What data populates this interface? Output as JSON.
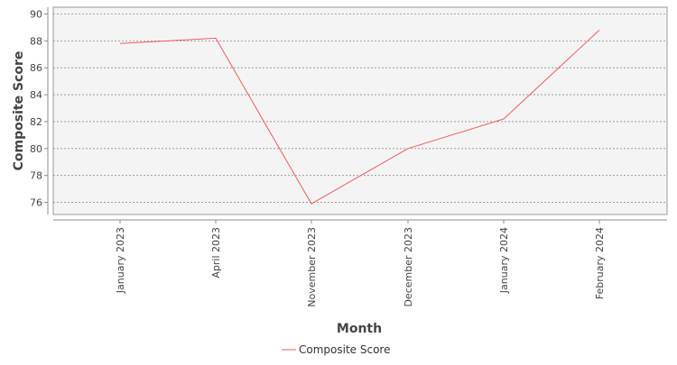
{
  "chart_data": {
    "type": "line",
    "categories": [
      "January 2023",
      "April 2023",
      "November 2023",
      "December 2023",
      "January 2024",
      "February 2024"
    ],
    "series": [
      {
        "name": "Composite Score",
        "values": [
          87.8,
          88.2,
          75.9,
          80.0,
          82.2,
          88.8
        ],
        "color": "#f55a5a"
      }
    ],
    "xlabel": "Month",
    "ylabel": "Composite Score",
    "ylim": [
      75.1,
      90.5
    ],
    "yticks": [
      76,
      78,
      80,
      82,
      84,
      86,
      88,
      90
    ],
    "grid": true,
    "legend_position": "bottom-center",
    "plot_background": "#f4f4f4",
    "grid_color": "#8c8c8c"
  }
}
